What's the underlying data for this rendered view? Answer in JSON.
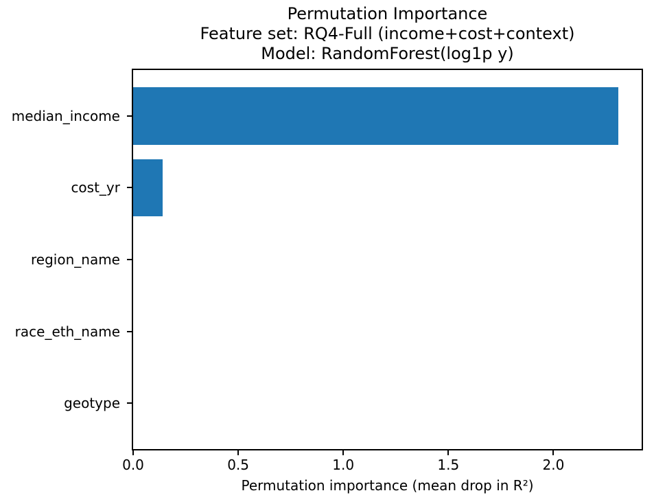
{
  "figure": {
    "background": "#ffffff",
    "text_color": "#000000",
    "spine_color": "#000000"
  },
  "chart_data": {
    "type": "bar",
    "orientation": "horizontal",
    "title_lines": [
      "Permutation Importance",
      "Feature set: RQ4-Full (income+cost+context)",
      "Model: RandomForest(log1p y)"
    ],
    "categories": [
      "median_income",
      "cost_yr",
      "region_name",
      "race_eth_name",
      "geotype"
    ],
    "values": [
      2.31,
      0.14,
      0.0,
      0.0,
      0.0
    ],
    "xlabel": "Permutation importance (mean drop in R²)",
    "ylabel": "",
    "xlim": [
      0,
      2.42
    ],
    "xticks": [
      0.0,
      0.5,
      1.0,
      1.5,
      2.0
    ],
    "xtick_labels": [
      "0.0",
      "0.5",
      "1.0",
      "1.5",
      "2.0"
    ],
    "bar_color": "#1f77b4",
    "bar_height_fraction": 0.8,
    "grid": false,
    "legend_position": "none"
  }
}
